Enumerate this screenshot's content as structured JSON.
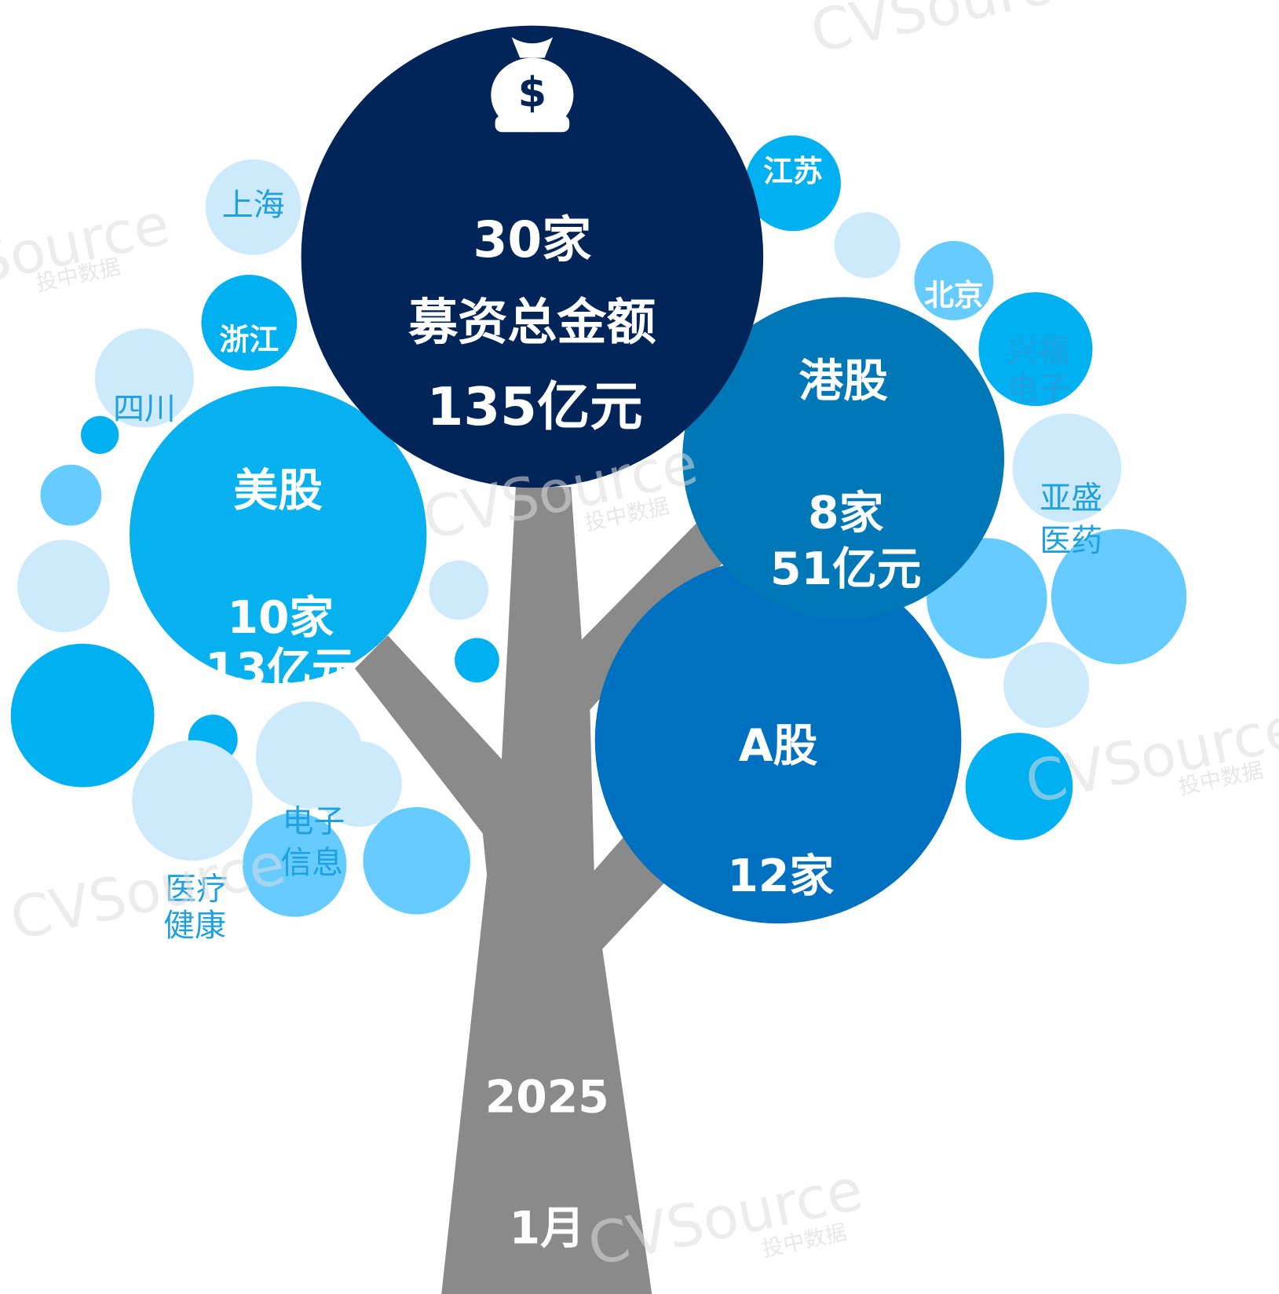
{
  "summary": {
    "count": "30家",
    "label": "募资总金额",
    "amount": "135亿元"
  },
  "markets": [
    {
      "name": "美股",
      "count": "10家",
      "amount": "13亿元"
    },
    {
      "name": "港股",
      "count": "8家",
      "amount": "51亿元"
    },
    {
      "name": "A股",
      "count": "12家"
    }
  ],
  "regions": [
    "上海",
    "浙江",
    "四川",
    "江苏",
    "北京"
  ],
  "companies": [
    [
      "兴福",
      "电子"
    ],
    [
      "亚盛",
      "医药"
    ]
  ],
  "industries": [
    [
      "电子",
      "信息"
    ],
    [
      "医疗",
      "健康"
    ]
  ],
  "date": {
    "year": "2025",
    "month": "1月"
  },
  "watermark": {
    "brand": "CVSource",
    "cn": "投中数据"
  }
}
